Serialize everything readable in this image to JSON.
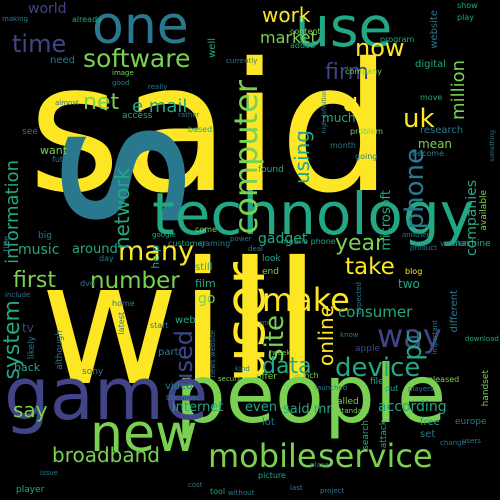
{
  "palette": {
    "background": "#000000",
    "yellow": "#fde725",
    "lightgreen": "#7ad151",
    "green": "#22a884",
    "teal": "#2a788e",
    "blue": "#414487",
    "purple": "#440154"
  },
  "words": {
    "said": "said",
    "will": "will",
    "s": "s",
    "people": "people",
    "game": "game",
    "technology": "technology",
    "one": "one",
    "use": "use",
    "user": "user",
    "new": "new",
    "mobile": "mobile",
    "service": "service",
    "make": "make",
    "computer": "computer",
    "software": "software",
    "way": "way",
    "phone": "phone",
    "pc": "pc",
    "device": "device",
    "site": "site",
    "many": "many",
    "number": "number",
    "network": "network",
    "system": "system",
    "online": "online",
    "firm": "firm",
    "uk": "uk",
    "u": "u",
    "year": "year",
    "take": "take",
    "data": "data",
    "used": "used",
    "first": "first",
    "time": "time",
    "now": "now",
    "work": "work",
    "e_mail": "e mail",
    "net": "net",
    "information": "information",
    "broadband": "broadband",
    "say": "say",
    "music": "music",
    "using": "using",
    "million": "million",
    "companies": "companies",
    "microsoft": "microsoft",
    "market": "market",
    "consumer": "consumer",
    "around": "around",
    "internet": "internet",
    "even": "even",
    "according": "according",
    "said_mr": "said mr",
    "gadget": "gadget",
    "world": "world",
    "mean": "mean",
    "much": "much",
    "research": "research",
    "website": "website",
    "digital": "digital",
    "want": "want",
    "access": "access",
    "tv": "tv",
    "two": "two",
    "go": "go",
    "film": "film",
    "problem": "problem",
    "blog": "blog",
    "version": "version",
    "release": "release",
    "available": "available",
    "show": "show",
    "play": "play",
    "people2": "people",
    "need": "need",
    "already": "already",
    "image": "image",
    "good": "good",
    "home": "home",
    "month": "month",
    "content": "content",
    "added": "added",
    "company": "company",
    "program": "program",
    "video": "video",
    "part": "part",
    "mobile_phone": "mobile phone",
    "customer": "customer",
    "gaming": "gaming",
    "come": "come",
    "still": "still",
    "web": "web",
    "based": "based",
    "well": "well",
    "currently": "currently",
    "really": "really",
    "lot": "lot",
    "look": "look",
    "end": "end",
    "make2": "make",
    "start": "start",
    "free": "free",
    "set": "set",
    "europe": "europe",
    "back": "back",
    "players": "players",
    "player": "player",
    "tool": "tool",
    "picture": "picture",
    "security": "security",
    "offer": "offer",
    "launch": "launch",
    "called": "called",
    "file": "file",
    "released": "released",
    "handset": "handset",
    "download": "download",
    "machine": "machine",
    "different": "different",
    "future": "future",
    "become": "become",
    "going": "going",
    "found": "found",
    "sony": "sony",
    "title": "title",
    "include": "include",
    "help": "help",
    "likely": "likely",
    "although": "although",
    "latest": "latest",
    "see": "see",
    "big": "big",
    "day": "day",
    "dvd": "dvd",
    "google": "google",
    "deal": "deal",
    "power": "power",
    "product": "product",
    "mr": "mr",
    "another": "another",
    "important": "important",
    "know": "know",
    "expected": "expected",
    "search": "search",
    "attack": "attack",
    "launched": "launched",
    "making": "making",
    "move": "move",
    "high_definition": "high definition",
    "kind": "kind",
    "bbc_news": "bbc news",
    "news_website": "news website",
    "week": "week",
    "look2": "look",
    "place": "place",
    "project": "project",
    "without": "without",
    "cost": "cost",
    "standard": "standard",
    "put": "put",
    "change": "change",
    "issue": "issue",
    "almost": "almost",
    "rather": "rather",
    "something": "something",
    "users": "users",
    "apple": "apple",
    "last": "last"
  }
}
